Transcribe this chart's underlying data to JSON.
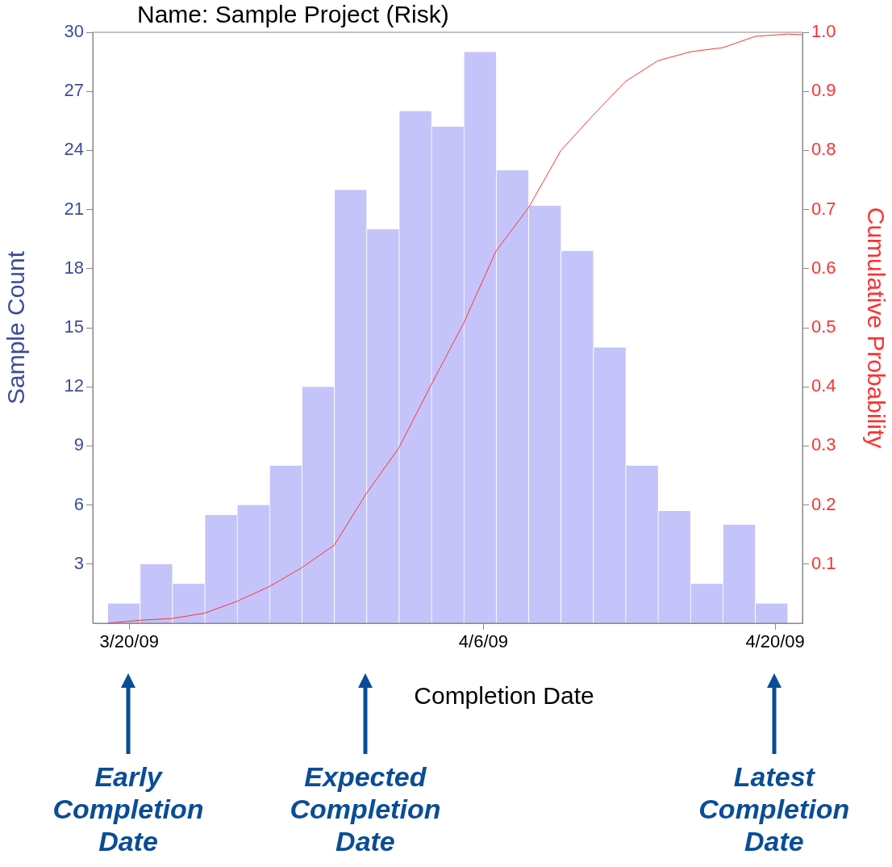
{
  "chart_data": {
    "type": "histogram",
    "title": "Name: Sample Project (Risk)",
    "xlabel": "Completion Date",
    "ylabel": "Sample Count",
    "y2label": "Cumulative Probability",
    "bins": [
      "2009-03-18T23:00",
      "2009-03-20T12:18",
      "2009-03-22T01:36",
      "2009-03-23T14:54",
      "2009-03-25T04:12",
      "2009-03-26T17:30",
      "2009-03-28T06:48",
      "2009-03-29T20:06",
      "2009-03-31T09:24",
      "2009-04-01T22:42",
      "2009-04-03T12:00",
      "2009-04-05T01:18",
      "2009-04-06T14:36",
      "2009-04-08T03:54",
      "2009-04-09T17:12",
      "2009-04-11T06:30",
      "2009-04-12T19:48",
      "2009-04-14T09:06",
      "2009-04-15T22:24",
      "2009-04-17T11:42",
      "2009-04-19T01:00",
      "2009-04-20T14:18"
    ],
    "series": [
      {
        "color": "#c4c4fa",
        "values": [
          1,
          3,
          2,
          5.5,
          6,
          8,
          12,
          22,
          20,
          26,
          25.2,
          29,
          23,
          21.2,
          18.9,
          14,
          8,
          5.7,
          2,
          5,
          1
        ]
      },
      {
        "type": "line",
        "color": "#ff3333",
        "axis": "y2",
        "x": [
          "2009-03-18T23:00",
          "2009-03-20T12:18",
          "2009-03-22T01:36",
          "2009-03-23T14:54",
          "2009-03-25T04:12",
          "2009-03-26T17:30",
          "2009-03-28T06:48",
          "2009-03-29T20:06",
          "2009-03-31T09:24",
          "2009-04-01T22:42",
          "2009-04-03T12:00",
          "2009-04-05T01:18",
          "2009-04-06T14:36",
          "2009-04-08T03:54",
          "2009-04-09T17:12",
          "2009-04-11T06:30",
          "2009-04-12T19:48",
          "2009-04-14T09:06",
          "2009-04-15T22:24",
          "2009-04-17T11:42",
          "2009-04-19T01:00",
          "2009-04-20T14:18",
          "2009-04-21T07:30"
        ],
        "values": [
          0,
          0.005,
          0.008,
          0.017,
          0.037,
          0.062,
          0.094,
          0.132,
          0.22,
          0.297,
          0.404,
          0.508,
          0.63,
          0.703,
          0.8,
          0.86,
          0.917,
          0.952,
          0.967,
          0.974,
          0.993,
          0.997,
          0.996
        ]
      }
    ],
    "xlim": [
      "2009-03-18T06:00",
      "2009-04-21T07:30"
    ],
    "xticks": [
      {
        "value": "2009-03-20",
        "label": "3/20/09"
      },
      {
        "value": "2009-04-06",
        "label": "4/6/09"
      },
      {
        "value": "2009-04-20",
        "label": "4/20/09"
      }
    ],
    "ylim": [
      0,
      30
    ],
    "yticks": [
      3,
      6,
      9,
      12,
      15,
      18,
      21,
      24,
      27,
      30
    ],
    "y2lim": [
      0,
      1
    ],
    "y2ticks": [
      0.1,
      0.2,
      0.3,
      0.4,
      0.5,
      0.6,
      0.7,
      0.8,
      0.9,
      {
        "value": 1,
        "label": "1.0"
      }
    ],
    "grid": false,
    "annotations": [
      "Early Completion Date",
      "Expected Completion Date",
      "Latest Completion Date"
    ]
  }
}
